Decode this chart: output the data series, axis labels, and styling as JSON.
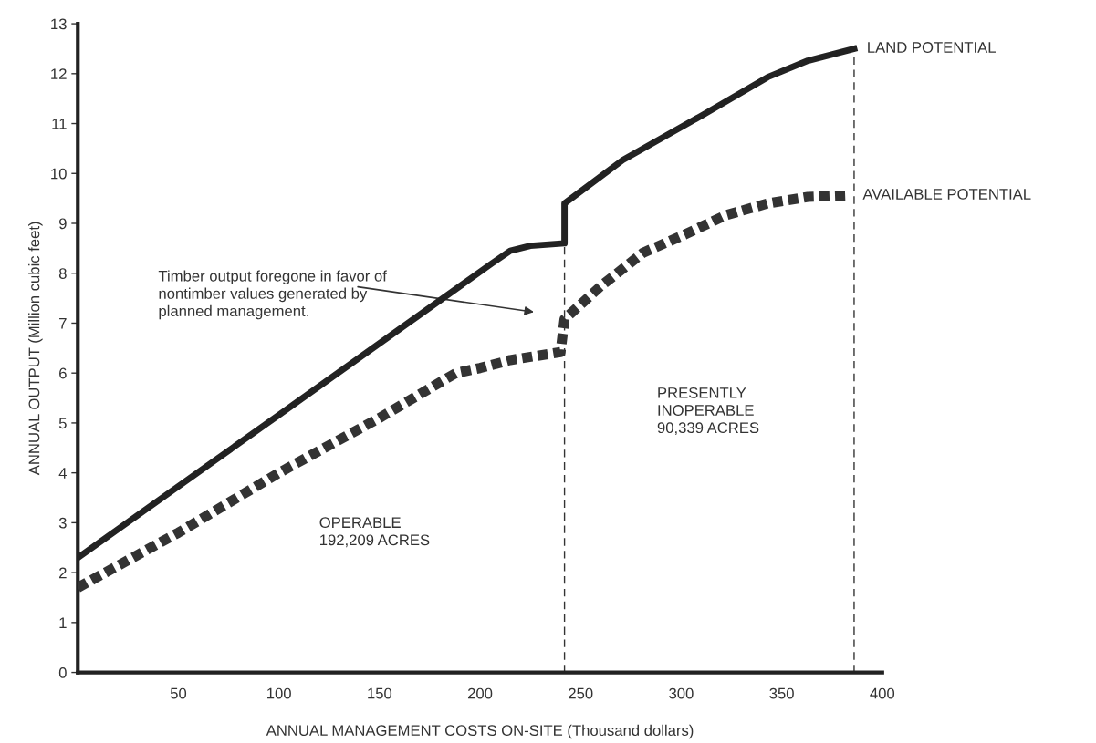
{
  "chart_data": {
    "type": "line",
    "xlabel": "ANNUAL MANAGEMENT COSTS ON-SITE (Thousand dollars)",
    "ylabel": "ANNUAL OUTPUT (Million cubic feet)",
    "series": [
      {
        "name": "LAND POTENTIAL",
        "color": "#222222",
        "line_style": "solid",
        "x": [
          0,
          100,
          206,
          215,
          225,
          242,
          242,
          271,
          312,
          343,
          363,
          386
        ],
        "values": [
          2.3,
          5.16,
          8.2,
          8.45,
          8.55,
          8.6,
          9.4,
          10.27,
          11.2,
          11.93,
          12.26,
          12.5
        ]
      },
      {
        "name": "AVAILABLE POTENTIAL",
        "color": "#333333",
        "line_style": "dashed",
        "x": [
          0,
          50,
          100,
          150,
          188,
          200,
          215,
          240,
          242,
          260,
          281,
          302,
          322,
          343,
          363,
          384
        ],
        "values": [
          1.7,
          2.8,
          4.0,
          5.1,
          6.0,
          6.1,
          6.26,
          6.42,
          7.08,
          7.74,
          8.41,
          8.78,
          9.16,
          9.4,
          9.53,
          9.56
        ]
      }
    ],
    "xlim": [
      0,
      400
    ],
    "xticks": [
      50,
      100,
      150,
      200,
      250,
      300,
      350,
      400
    ],
    "ylim": [
      0,
      13
    ],
    "yticks": [
      0,
      1,
      2,
      3,
      4,
      5,
      6,
      7,
      8,
      9,
      10,
      11,
      12,
      13
    ],
    "ref_lines": [
      {
        "axis": "x",
        "value": 242,
        "color": "#333333",
        "line_style": "dashed"
      },
      {
        "axis": "x",
        "value": 386,
        "color": "#333333",
        "line_style": "dashed"
      }
    ],
    "annotations": [
      "Timber output foregone in favor of\nnontimber values generated by\nplanned management.",
      "OPERABLE\n192,209 ACRES",
      "PRESENTLY\nINOPERABLE\n90,339 ACRES"
    ],
    "grid": false,
    "legend": false
  }
}
